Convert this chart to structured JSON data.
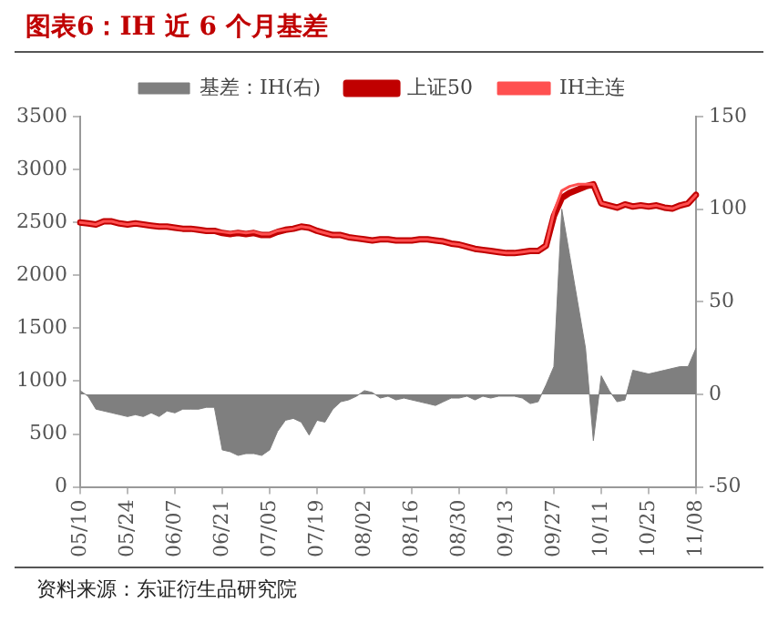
{
  "chart_data": {
    "type": "line",
    "title": "图表6：IH 近 6 个月基差",
    "annotations": [
      "资料来源：东证衍生品研究院"
    ],
    "categories": [
      "05/10",
      null,
      null,
      null,
      null,
      null,
      "05/24",
      null,
      null,
      null,
      null,
      null,
      "06/07",
      null,
      null,
      null,
      null,
      null,
      "06/21",
      null,
      null,
      null,
      null,
      null,
      "07/05",
      null,
      null,
      null,
      null,
      null,
      "07/19",
      null,
      null,
      null,
      null,
      null,
      "08/02",
      null,
      null,
      null,
      null,
      null,
      "08/16",
      null,
      null,
      null,
      null,
      null,
      "08/30",
      null,
      null,
      null,
      null,
      null,
      "09/13",
      null,
      null,
      null,
      null,
      null,
      "09/27",
      null,
      null,
      null,
      null,
      null,
      "10/11",
      null,
      null,
      null,
      null,
      null,
      "10/25",
      null,
      null,
      null,
      null,
      null,
      "11/08"
    ],
    "series": [
      {
        "name": "基差：IH(右)",
        "type": "area",
        "axis": "y2",
        "color": "#7f7f7f",
        "values": [
          2,
          -1,
          -8,
          -9,
          -10,
          -11,
          -12,
          -11,
          -12,
          -10,
          -12,
          -9,
          -10,
          -8,
          -8,
          -8,
          -7,
          -7,
          -30,
          -31,
          -33,
          -32,
          -32,
          -33,
          -30,
          -20,
          -14,
          -13,
          -15,
          -22,
          -14,
          -15,
          -8,
          -4,
          -3,
          -1,
          2,
          1,
          -2,
          -1,
          -3,
          -2,
          -3,
          -4,
          -5,
          -6,
          -4,
          -2,
          -2,
          -1,
          -3,
          -1,
          -2,
          -1,
          -1,
          -1,
          -2,
          -5,
          -4,
          5,
          15,
          100,
          75,
          50,
          25,
          -25,
          10,
          2,
          -4,
          -3,
          13,
          12,
          11,
          12,
          13,
          14,
          15,
          15,
          25
        ]
      },
      {
        "name": "上证50",
        "type": "line",
        "color": "#c00000",
        "values": [
          2500,
          2490,
          2480,
          2510,
          2510,
          2490,
          2480,
          2490,
          2480,
          2470,
          2460,
          2460,
          2450,
          2440,
          2440,
          2430,
          2420,
          2420,
          2400,
          2390,
          2400,
          2390,
          2400,
          2380,
          2380,
          2410,
          2430,
          2440,
          2460,
          2450,
          2420,
          2400,
          2380,
          2380,
          2360,
          2350,
          2340,
          2330,
          2340,
          2340,
          2330,
          2330,
          2330,
          2340,
          2340,
          2330,
          2320,
          2300,
          2290,
          2270,
          2250,
          2240,
          2230,
          2220,
          2210,
          2210,
          2220,
          2230,
          2230,
          2280,
          2560,
          2730,
          2780,
          2810,
          2840,
          2860,
          2680,
          2660,
          2640,
          2670,
          2650,
          2660,
          2650,
          2660,
          2640,
          2630,
          2660,
          2680,
          2760
        ]
      },
      {
        "name": "IH主连",
        "type": "line",
        "color": "#ff5050",
        "values": [
          2500,
          2490,
          2480,
          2510,
          2510,
          2490,
          2480,
          2490,
          2480,
          2470,
          2460,
          2460,
          2450,
          2440,
          2440,
          2430,
          2420,
          2420,
          2410,
          2400,
          2410,
          2400,
          2410,
          2390,
          2390,
          2420,
          2430,
          2440,
          2460,
          2450,
          2420,
          2400,
          2380,
          2380,
          2360,
          2350,
          2340,
          2330,
          2340,
          2340,
          2330,
          2330,
          2330,
          2340,
          2340,
          2330,
          2320,
          2300,
          2290,
          2270,
          2250,
          2240,
          2230,
          2220,
          2210,
          2210,
          2220,
          2230,
          2230,
          2280,
          2600,
          2800,
          2840,
          2860,
          2860,
          2860,
          2680,
          2660,
          2640,
          2670,
          2650,
          2660,
          2650,
          2660,
          2640,
          2630,
          2660,
          2680,
          2760
        ]
      }
    ],
    "ylim": [
      0,
      3500
    ],
    "yticks": [
      0,
      500,
      1000,
      1500,
      2000,
      2500,
      3000,
      3500
    ],
    "y2lim": [
      -50,
      150
    ],
    "y2ticks": [
      -50,
      0,
      50,
      100,
      150
    ],
    "legend": "top",
    "grid": false,
    "marker": "none"
  }
}
